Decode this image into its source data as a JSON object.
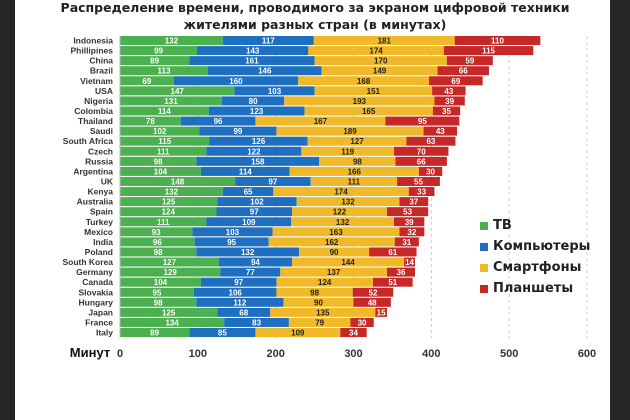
{
  "chart_data": {
    "type": "bar",
    "orientation": "horizontal",
    "stacked": true,
    "title": "Распределение времени, проводимого за экраном цифровой техники жителями разных стран (в минутах)",
    "title_lines": [
      "Распределение времени, проводимого за экраном цифровой техники",
      "жителями разных стран (в минутах)"
    ],
    "xlabel": "Минут",
    "xlim": [
      0,
      600
    ],
    "xticks": [
      0,
      100,
      200,
      300,
      400,
      500,
      600
    ],
    "grid": "vertical dashed",
    "legend_placement": "right",
    "categories": [
      "Indonesia",
      "Phillipines",
      "China",
      "Brazil",
      "Vietnam",
      "USA",
      "Nigeria",
      "Colombia",
      "Thailand",
      "Saudi",
      "South Africa",
      "Czech",
      "Russia",
      "Argentina",
      "UK",
      "Kenya",
      "Australia",
      "Spain",
      "Turkey",
      "Mexico",
      "India",
      "Poland",
      "South Korea",
      "Germany",
      "Canada",
      "Slovakia",
      "Hungary",
      "Japan",
      "France",
      "Italy"
    ],
    "series": [
      {
        "name": "ТВ",
        "color": "#4caf50",
        "values": [
          132,
          99,
          89,
          113,
          69,
          147,
          131,
          114,
          78,
          102,
          115,
          111,
          98,
          104,
          148,
          132,
          125,
          124,
          111,
          93,
          96,
          98,
          127,
          129,
          104,
          95,
          98,
          125,
          134,
          89
        ]
      },
      {
        "name": "Компьютеры",
        "color": "#1e6fc0",
        "values": [
          117,
          143,
          161,
          146,
          160,
          103,
          80,
          123,
          96,
          99,
          126,
          122,
          158,
          114,
          97,
          65,
          102,
          97,
          109,
          103,
          95,
          132,
          94,
          77,
          97,
          106,
          112,
          68,
          83,
          85
        ]
      },
      {
        "name": "Смартфоны",
        "color": "#f0b929",
        "values": [
          181,
          174,
          170,
          149,
          168,
          151,
          193,
          165,
          167,
          189,
          127,
          119,
          98,
          166,
          111,
          174,
          132,
          122,
          132,
          163,
          162,
          90,
          144,
          137,
          124,
          98,
          90,
          135,
          79,
          109
        ]
      },
      {
        "name": "Планшеты",
        "color": "#c62828",
        "values": [
          110,
          115,
          59,
          66,
          69,
          43,
          39,
          35,
          95,
          43,
          63,
          70,
          66,
          30,
          55,
          33,
          37,
          53,
          39,
          32,
          31,
          61,
          14,
          36,
          51,
          52,
          48,
          15,
          30,
          34
        ]
      }
    ]
  }
}
